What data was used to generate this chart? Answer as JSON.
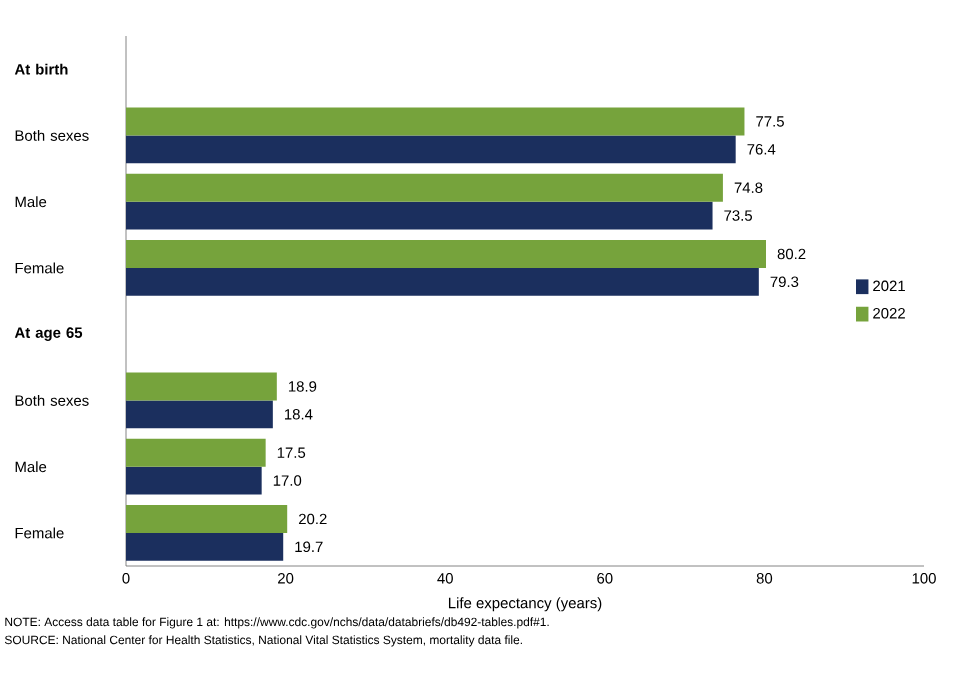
{
  "chart_data": {
    "type": "bar",
    "orientation": "horizontal",
    "categories": [
      "At birth",
      "Both sexes",
      "Male",
      "Female",
      "At age 65",
      "Both sexes",
      "Male",
      "Female"
    ],
    "series": [
      {
        "name": "2021",
        "color": "#1b2f5e",
        "values": [
          null,
          76.4,
          73.5,
          79.3,
          null,
          18.4,
          17.0,
          19.7
        ],
        "value_labels": [
          null,
          "76.4",
          "73.5",
          "79.3",
          null,
          "18.4",
          "17.0",
          "19.7"
        ]
      },
      {
        "name": "2022",
        "color": "#76a33c",
        "values": [
          null,
          77.5,
          74.8,
          80.2,
          null,
          18.9,
          17.5,
          20.2
        ],
        "value_labels": [
          null,
          "77.5",
          "74.8",
          "80.2",
          null,
          "18.9",
          "17.5",
          "20.2"
        ]
      }
    ],
    "xlabel": "Life expectancy (years)",
    "xlim": [
      0,
      100
    ],
    "xticks": [
      0,
      20,
      40,
      60,
      80,
      100
    ],
    "legend": "right",
    "grid": false,
    "annotations": [
      "NOTE: Access data table for Figure 1 at: https://www.cdc.gov/nchs/data/databriefs/db492-tables.pdf#1.",
      "SOURCE: National Center for Health Statistics, National Vital Statistics System, mortality data file."
    ]
  }
}
